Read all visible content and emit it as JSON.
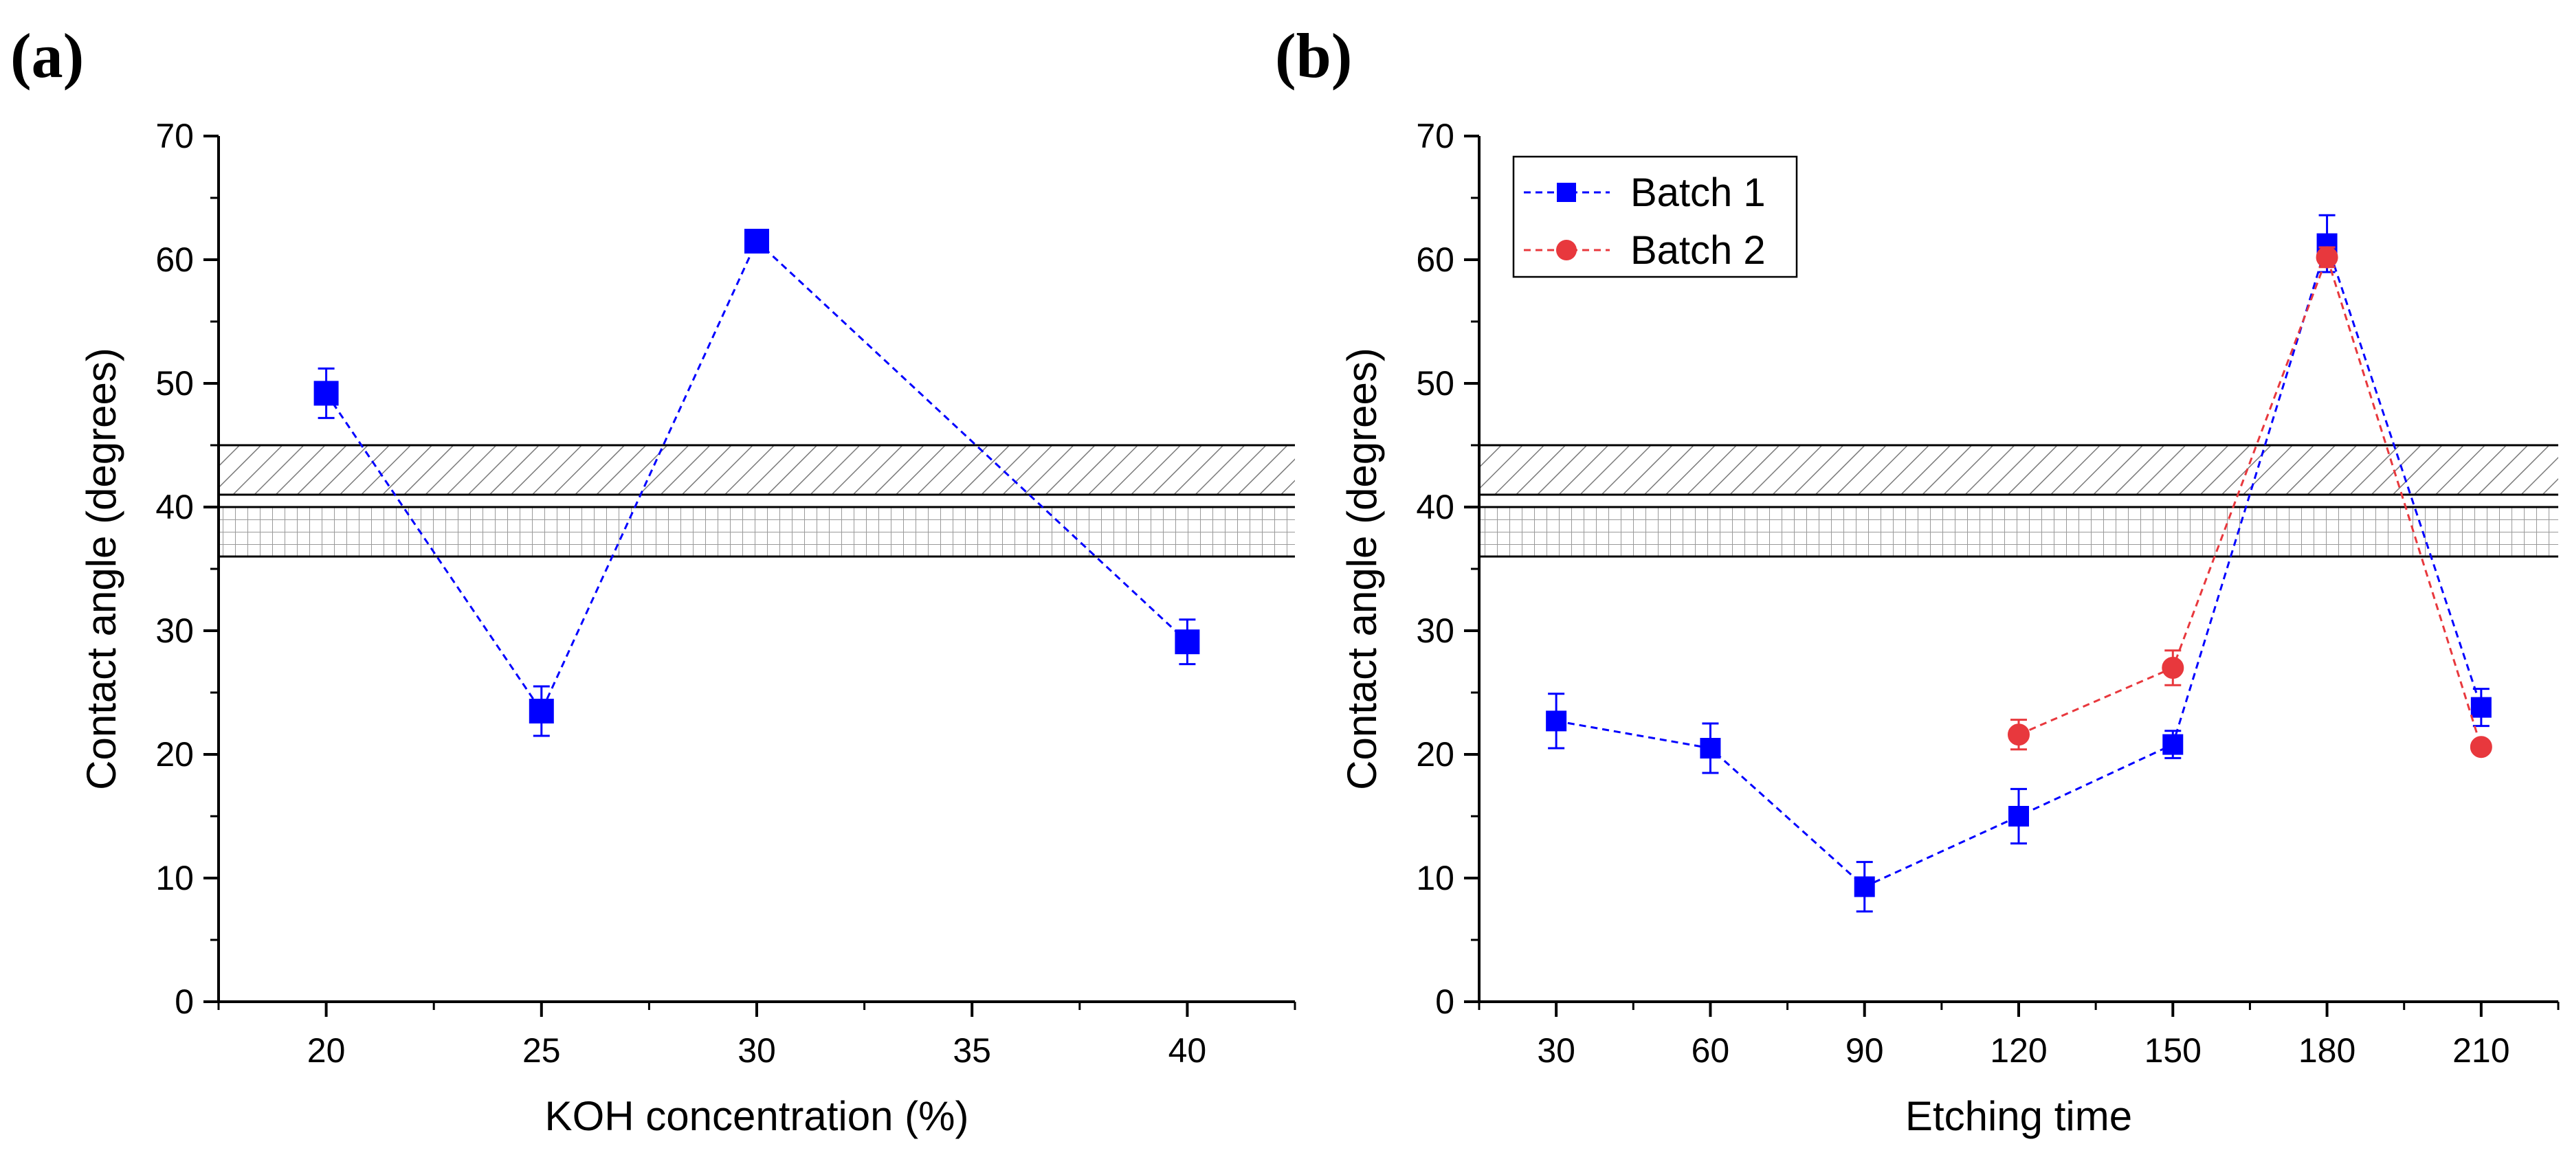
{
  "chart_data": [
    {
      "type": "line",
      "panel_label": "(a)",
      "xlabel": "KOH concentration (%)",
      "ylabel": "Contact angle (degrees)",
      "xlim": [
        17.5,
        42.5
      ],
      "ylim": [
        0,
        70
      ],
      "xticks": [
        20,
        25,
        30,
        35,
        40
      ],
      "yticks": [
        0,
        10,
        20,
        30,
        40,
        50,
        60,
        70
      ],
      "legend": false,
      "bands": [
        {
          "pattern": "diagonal-hatch",
          "ymin": 41,
          "ymax": 45
        },
        {
          "pattern": "grid-hatch",
          "ymin": 36,
          "ymax": 40
        }
      ],
      "series": [
        {
          "name": "Batch 1",
          "color": "#0000ff",
          "marker": "square",
          "line": "dashed",
          "x": [
            20,
            25,
            30,
            40
          ],
          "y": [
            49.2,
            23.5,
            61.5,
            29.1
          ],
          "err": [
            2.0,
            2.0,
            0.6,
            1.8
          ]
        }
      ]
    },
    {
      "type": "line",
      "panel_label": "(b)",
      "xlabel": "Etching time",
      "ylabel": "Contact angle (degrees)",
      "xlim": [
        15,
        225
      ],
      "ylim": [
        0,
        70
      ],
      "xticks": [
        30,
        60,
        90,
        120,
        150,
        180,
        210
      ],
      "yticks": [
        0,
        10,
        20,
        30,
        40,
        50,
        60,
        70
      ],
      "legend": true,
      "legend_position": "top-left",
      "bands": [
        {
          "pattern": "diagonal-hatch",
          "ymin": 41,
          "ymax": 45
        },
        {
          "pattern": "grid-hatch",
          "ymin": 36,
          "ymax": 40
        }
      ],
      "series": [
        {
          "name": "Batch 1",
          "color": "#0000ff",
          "marker": "square",
          "line": "dashed",
          "x": [
            30,
            60,
            90,
            120,
            150,
            180,
            210
          ],
          "y": [
            22.7,
            20.5,
            9.3,
            15.0,
            20.8,
            61.3,
            23.8
          ],
          "err": [
            2.2,
            2.0,
            2.0,
            2.2,
            1.1,
            2.3,
            1.5
          ]
        },
        {
          "name": "Batch 2",
          "color": "#e8383d",
          "marker": "circle",
          "line": "dashed",
          "x": [
            120,
            150,
            180,
            210
          ],
          "y": [
            21.6,
            27.0,
            60.2,
            20.6
          ],
          "err": [
            1.2,
            1.4,
            0.8,
            0.5
          ]
        }
      ]
    }
  ]
}
